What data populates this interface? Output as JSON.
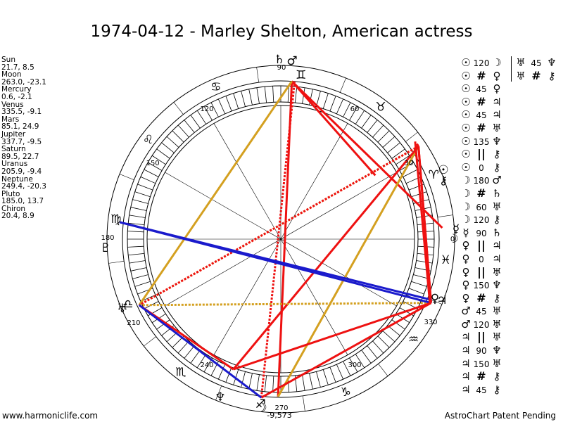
{
  "title": "1974-04-12 - Marley Shelton, American actress",
  "planets": [
    {
      "name": "Sun",
      "coords": "21.7, 8.5"
    },
    {
      "name": "Moon",
      "coords": "263.0, -23.1"
    },
    {
      "name": "Mercury",
      "coords": "0.6, -2.1"
    },
    {
      "name": "Venus",
      "coords": "335.5, -9.1"
    },
    {
      "name": "Mars",
      "coords": "85.1, 24.9"
    },
    {
      "name": "Jupiter",
      "coords": "337.7, -9.5"
    },
    {
      "name": "Saturn",
      "coords": "89.5, 22.7"
    },
    {
      "name": "Uranus",
      "coords": "205.9, -9.4"
    },
    {
      "name": "Neptune",
      "coords": "249.4, -20.3"
    },
    {
      "name": "Pluto",
      "coords": "185.0, 13.7"
    },
    {
      "name": "Chiron",
      "coords": "20.4, 8.9"
    }
  ],
  "wheel": {
    "degree_labels": [
      "90",
      "60",
      "30",
      "0",
      "330",
      "300",
      "270",
      "240",
      "210",
      "180",
      "150",
      "120"
    ],
    "moon_extra_label": "-9,573",
    "sign_glyphs": [
      "♈",
      "♉",
      "♊",
      "♋",
      "♌",
      "♍",
      "♎",
      "♏",
      "♐",
      "♑",
      "♒",
      "♓"
    ],
    "planet_glyphs": {
      "sun": "☉",
      "moon": "☽",
      "mercury": "☿",
      "venus": "♀",
      "mars": "♂",
      "jupiter": "♃",
      "saturn": "♄",
      "uranus": "♅",
      "neptune": "♆",
      "pluto": "♇",
      "chiron": "⚷"
    }
  },
  "aspects_col1": [
    {
      "a": "☉",
      "sym": "120",
      "b": "☽"
    },
    {
      "a": "☉",
      "sym": "#",
      "b": "♀"
    },
    {
      "a": "☉",
      "sym": "45",
      "b": "♀"
    },
    {
      "a": "☉",
      "sym": "#",
      "b": "♃"
    },
    {
      "a": "☉",
      "sym": "45",
      "b": "♃"
    },
    {
      "a": "☉",
      "sym": "#",
      "b": "♅"
    },
    {
      "a": "☉",
      "sym": "135",
      "b": "♆"
    },
    {
      "a": "☉",
      "sym": "||",
      "b": "⚷"
    },
    {
      "a": "☉",
      "sym": "0",
      "b": "⚷"
    },
    {
      "a": "☽",
      "sym": "180",
      "b": "♂"
    },
    {
      "a": "☽",
      "sym": "#",
      "b": "♄"
    },
    {
      "a": "☽",
      "sym": "60",
      "b": "♅"
    },
    {
      "a": "☽",
      "sym": "120",
      "b": "⚷"
    },
    {
      "a": "☿",
      "sym": "90",
      "b": "♄"
    },
    {
      "a": "♀",
      "sym": "||",
      "b": "♃"
    },
    {
      "a": "♀",
      "sym": "0",
      "b": "♃"
    },
    {
      "a": "♀",
      "sym": "||",
      "b": "♅"
    },
    {
      "a": "♀",
      "sym": "150",
      "b": "♆"
    },
    {
      "a": "♀",
      "sym": "#",
      "b": "⚷"
    },
    {
      "a": "♂",
      "sym": "45",
      "b": "♅"
    },
    {
      "a": "♂",
      "sym": "120",
      "b": "♅"
    },
    {
      "a": "♃",
      "sym": "||",
      "b": "♅"
    },
    {
      "a": "♃",
      "sym": "90",
      "b": "♆"
    },
    {
      "a": "♃",
      "sym": "150",
      "b": "♅"
    },
    {
      "a": "♃",
      "sym": "#",
      "b": "⚷"
    },
    {
      "a": "♃",
      "sym": "45",
      "b": "⚷"
    }
  ],
  "aspects_col2": [
    {
      "a": "♅",
      "sym": "45",
      "b": "♆"
    },
    {
      "a": "♅",
      "sym": "#",
      "b": "⚷"
    }
  ],
  "footer": {
    "site": "www.harmoniclife.com",
    "patent": "AstroChart Patent Pending"
  },
  "colors": {
    "red": "#ee1111",
    "gold": "#d4a020",
    "blue": "#1a1acc"
  }
}
